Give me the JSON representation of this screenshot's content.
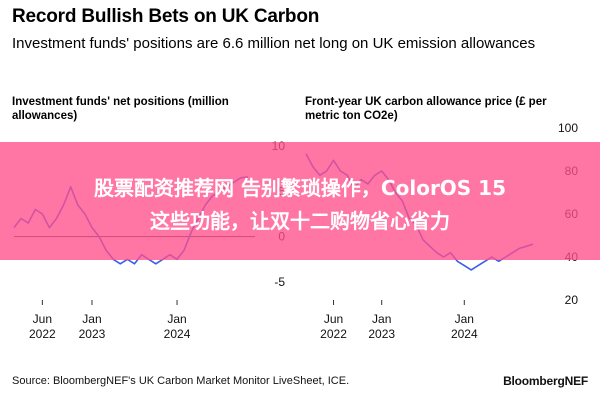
{
  "header": {
    "title": "Record Bullish Bets on UK Carbon",
    "subtitle": "Investment funds' positions are 6.6 million net long on UK emission allowances"
  },
  "banner": {
    "line1": "股票配资推荐网 告别繁琐操作，ColorOS 15",
    "line2": "这些功能，让双十二购物省心省力"
  },
  "footer": {
    "source": "Source: BloombergNEF's UK Carbon Market Monitor LiveSheet, ICE.",
    "brand": "BloombergNEF"
  },
  "colors": {
    "line": "#3b5ee8",
    "banner": "#ff508c",
    "zero_line": "#333333"
  },
  "chart_data": [
    {
      "type": "line",
      "title": "Investment funds' net positions (million allowances)",
      "x_tick_labels": [
        [
          "Jun",
          "2022"
        ],
        [
          "Jan",
          "2023"
        ],
        [
          "Jan",
          "2024"
        ]
      ],
      "x_ticks": [
        "2022-06",
        "2023-01",
        "2024-01"
      ],
      "xlim": [
        "2022-02",
        "2024-12"
      ],
      "y_ticks": [
        "10",
        "5",
        "0",
        "-5"
      ],
      "ylim": [
        -7,
        12
      ],
      "series": [
        {
          "x": [
            "2022-02",
            "2022-03",
            "2022-04",
            "2022-05",
            "2022-06",
            "2022-07",
            "2022-08",
            "2022-09",
            "2022-10",
            "2022-11",
            "2022-12",
            "2023-01",
            "2023-02",
            "2023-03",
            "2023-04",
            "2023-05",
            "2023-06",
            "2023-07",
            "2023-08",
            "2023-09",
            "2023-10",
            "2023-11",
            "2023-12",
            "2024-01",
            "2024-02",
            "2024-03",
            "2024-04",
            "2024-05",
            "2024-06",
            "2024-07",
            "2024-08",
            "2024-09",
            "2024-10",
            "2024-11"
          ],
          "values": [
            1.0,
            2.0,
            1.5,
            3.0,
            2.5,
            1.0,
            2.0,
            3.5,
            5.5,
            3.5,
            2.5,
            1.0,
            0.0,
            -1.5,
            -2.5,
            -3.0,
            -2.5,
            -3.0,
            -2.0,
            -2.5,
            -3.0,
            -2.5,
            -2.0,
            -2.5,
            -1.5,
            0.5,
            2.0,
            3.5,
            4.5,
            5.0,
            5.5,
            6.0,
            6.5,
            6.6
          ]
        }
      ]
    },
    {
      "type": "line",
      "title": "Front-year UK carbon allowance price (£ per metric ton CO2e)",
      "x_tick_labels": [
        [
          "Jun",
          "2022"
        ],
        [
          "Jan",
          "2023"
        ],
        [
          "Jan",
          "2024"
        ]
      ],
      "x_ticks": [
        "2022-06",
        "2023-01",
        "2024-01"
      ],
      "xlim": [
        "2022-02",
        "2024-12"
      ],
      "y_ticks": [
        "100",
        "80",
        "60",
        "40",
        "20"
      ],
      "ylim": [
        20,
        100
      ],
      "series": [
        {
          "x": [
            "2022-02",
            "2022-03",
            "2022-04",
            "2022-05",
            "2022-06",
            "2022-07",
            "2022-08",
            "2022-09",
            "2022-10",
            "2022-11",
            "2022-12",
            "2023-01",
            "2023-02",
            "2023-03",
            "2023-04",
            "2023-05",
            "2023-06",
            "2023-07",
            "2023-08",
            "2023-09",
            "2023-10",
            "2023-11",
            "2023-12",
            "2024-01",
            "2024-02",
            "2024-03",
            "2024-04",
            "2024-05",
            "2024-06",
            "2024-07",
            "2024-08",
            "2024-09",
            "2024-10",
            "2024-11"
          ],
          "values": [
            88,
            82,
            78,
            80,
            85,
            80,
            78,
            72,
            76,
            74,
            78,
            80,
            76,
            70,
            66,
            58,
            55,
            48,
            45,
            42,
            40,
            42,
            38,
            36,
            34,
            36,
            38,
            40,
            38,
            40,
            42,
            44,
            45,
            46
          ]
        }
      ]
    }
  ]
}
